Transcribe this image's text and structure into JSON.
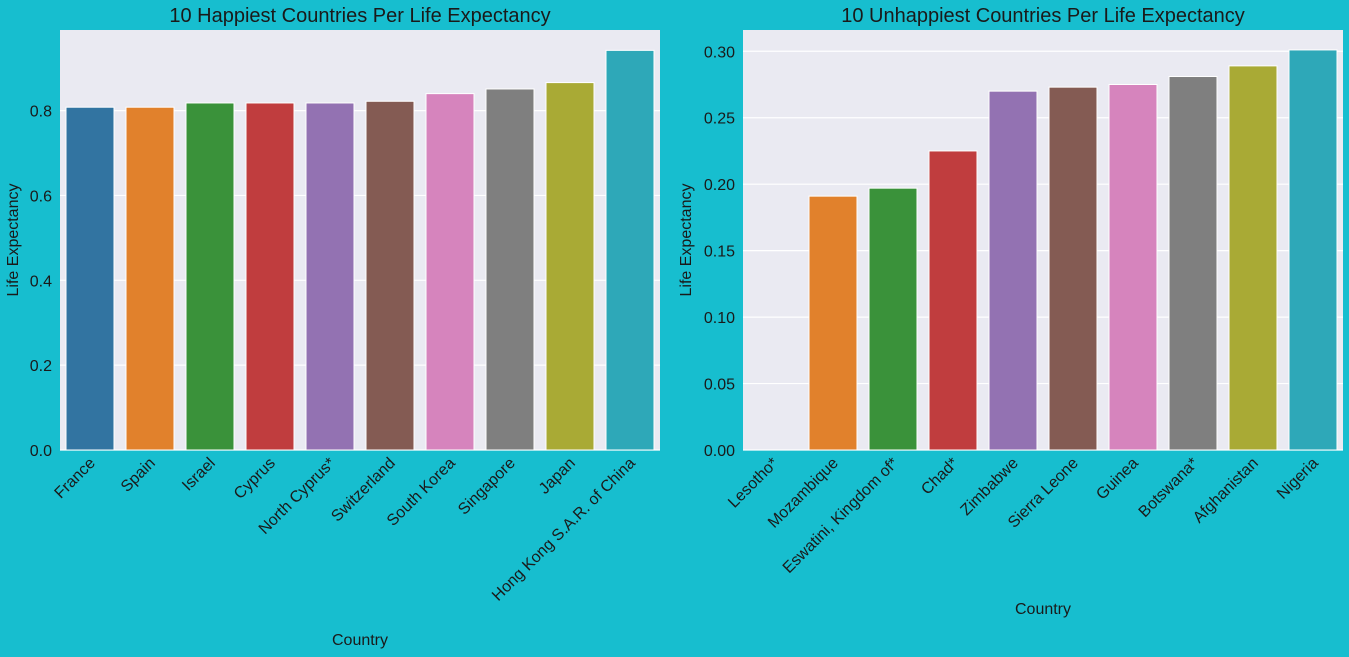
{
  "chart_data": [
    {
      "type": "bar",
      "title": "10 Happiest Countries Per Life Expectancy",
      "xlabel": "Country",
      "ylabel": "Life Expectancy",
      "ylim": [
        0,
        0.99
      ],
      "yticks": [
        0.0,
        0.2,
        0.4,
        0.6,
        0.8
      ],
      "ytick_labels": [
        "0.0",
        "0.2",
        "0.4",
        "0.6",
        "0.8"
      ],
      "grid": true,
      "categories": [
        "France",
        "Spain",
        "Israel",
        "Cyprus",
        "North Cyprus*",
        "Switzerland",
        "South Korea",
        "Singapore",
        "Japan",
        "Hong Kong S.A.R. of China"
      ],
      "values": [
        0.808,
        0.808,
        0.818,
        0.818,
        0.818,
        0.822,
        0.84,
        0.851,
        0.866,
        0.942
      ],
      "colors": [
        "#3274a1",
        "#e1812c",
        "#3a923a",
        "#c03d3e",
        "#9372b2",
        "#845b53",
        "#d684bd",
        "#7f7f7f",
        "#a9aa35",
        "#2ea8b8"
      ]
    },
    {
      "type": "bar",
      "title": "10 Unhappiest Countries Per Life Expectancy",
      "xlabel": "Country",
      "ylabel": "Life Expectancy",
      "ylim": [
        0,
        0.316
      ],
      "yticks": [
        0.0,
        0.05,
        0.1,
        0.15,
        0.2,
        0.25,
        0.3
      ],
      "ytick_labels": [
        "0.00",
        "0.05",
        "0.10",
        "0.15",
        "0.20",
        "0.25",
        "0.30"
      ],
      "grid": true,
      "categories": [
        "Lesotho*",
        "Mozambique",
        "Eswatini, Kingdom of*",
        "Chad*",
        "Zimbabwe",
        "Sierra Leone",
        "Guinea",
        "Botswana*",
        "Afghanistan",
        "Nigeria"
      ],
      "values": [
        0.0,
        0.191,
        0.197,
        0.225,
        0.27,
        0.273,
        0.275,
        0.281,
        0.289,
        0.301
      ],
      "colors": [
        "#3274a1",
        "#e1812c",
        "#3a923a",
        "#c03d3e",
        "#9372b2",
        "#845b53",
        "#d684bd",
        "#7f7f7f",
        "#a9aa35",
        "#2ea8b8"
      ]
    }
  ]
}
